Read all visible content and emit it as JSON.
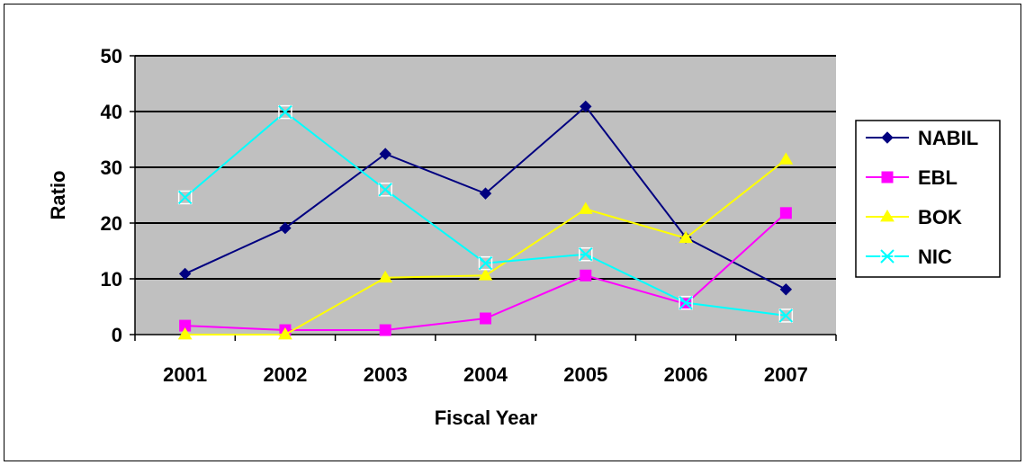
{
  "chart_data": {
    "type": "line",
    "title": "",
    "xlabel": "Fiscal Year",
    "ylabel": "Ratio",
    "categories": [
      "2001",
      "2002",
      "2003",
      "2004",
      "2005",
      "2006",
      "2007"
    ],
    "ylim": [
      0,
      50
    ],
    "yticks": [
      "0",
      "10",
      "20",
      "30",
      "40",
      "50"
    ],
    "grid": true,
    "plot_background": "#c0c0c0",
    "legend": "right",
    "series": [
      {
        "name": "NABIL",
        "color": "#000080",
        "marker": "diamond",
        "values": [
          10.9,
          19.1,
          32.4,
          25.3,
          40.9,
          17.4,
          8.1
        ]
      },
      {
        "name": "EBL",
        "color": "#ff00ff",
        "marker": "square",
        "values": [
          1.6,
          0.8,
          0.8,
          2.9,
          10.6,
          5.5,
          21.8
        ]
      },
      {
        "name": "BOK",
        "color": "#ffff00",
        "marker": "triangle",
        "values": [
          0.0,
          0.0,
          10.2,
          10.6,
          22.5,
          17.3,
          31.4
        ]
      },
      {
        "name": "NIC",
        "color": "#00ffff",
        "marker": "x",
        "values": [
          24.6,
          39.9,
          26.0,
          12.8,
          14.4,
          5.7,
          3.4
        ]
      }
    ]
  }
}
